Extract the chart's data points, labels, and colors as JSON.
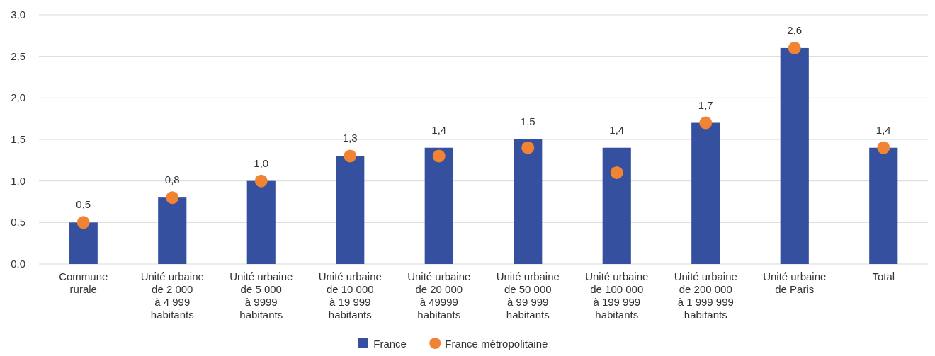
{
  "chart_data": {
    "type": "bar",
    "categories": [
      "Commune\nrurale",
      "Unité urbaine\nde 2 000\nà 4 999\nhabitants",
      "Unité urbaine\nde 5 000\nà 9999\nhabitants",
      "Unité urbaine\nde 10 000\nà 19 999\nhabitants",
      "Unité urbaine\nde 20 000\nà 49999\nhabitants",
      "Unité urbaine\nde 50 000\nà 99 999\nhabitants",
      "Unité urbaine\nde 100 000\nà 199 999\nhabitants",
      "Unité urbaine\nde 200 000\nà 1 999 999\nhabitants",
      "Unité urbaine\nde Paris",
      "Total"
    ],
    "series": [
      {
        "name": "France",
        "color": "#34509f",
        "values": [
          0.5,
          0.8,
          1.0,
          1.3,
          1.4,
          1.5,
          1.4,
          1.7,
          2.6,
          1.4
        ],
        "value_labels": [
          "0,5",
          "0,8",
          "1,0",
          "1,3",
          "1,4",
          "1,5",
          "1,4",
          "1,7",
          "2,6",
          "1,4"
        ]
      },
      {
        "name": "France métropolitaine",
        "type": "scatter",
        "color": "#f08434",
        "values": [
          0.5,
          0.8,
          1.0,
          1.3,
          1.3,
          1.4,
          1.1,
          1.7,
          2.6,
          1.4
        ]
      }
    ],
    "ylim": [
      0,
      3
    ],
    "yticks": [
      {
        "value": 0,
        "label": "0,0"
      },
      {
        "value": 0.5,
        "label": "0,5"
      },
      {
        "value": 1,
        "label": "1,0"
      },
      {
        "value": 1.5,
        "label": "1,5"
      },
      {
        "value": 2,
        "label": "2,0"
      },
      {
        "value": 2.5,
        "label": "2,5"
      },
      {
        "value": 3,
        "label": "3,0"
      }
    ],
    "grid": "y",
    "legend": "bottom",
    "marker": "circle"
  }
}
